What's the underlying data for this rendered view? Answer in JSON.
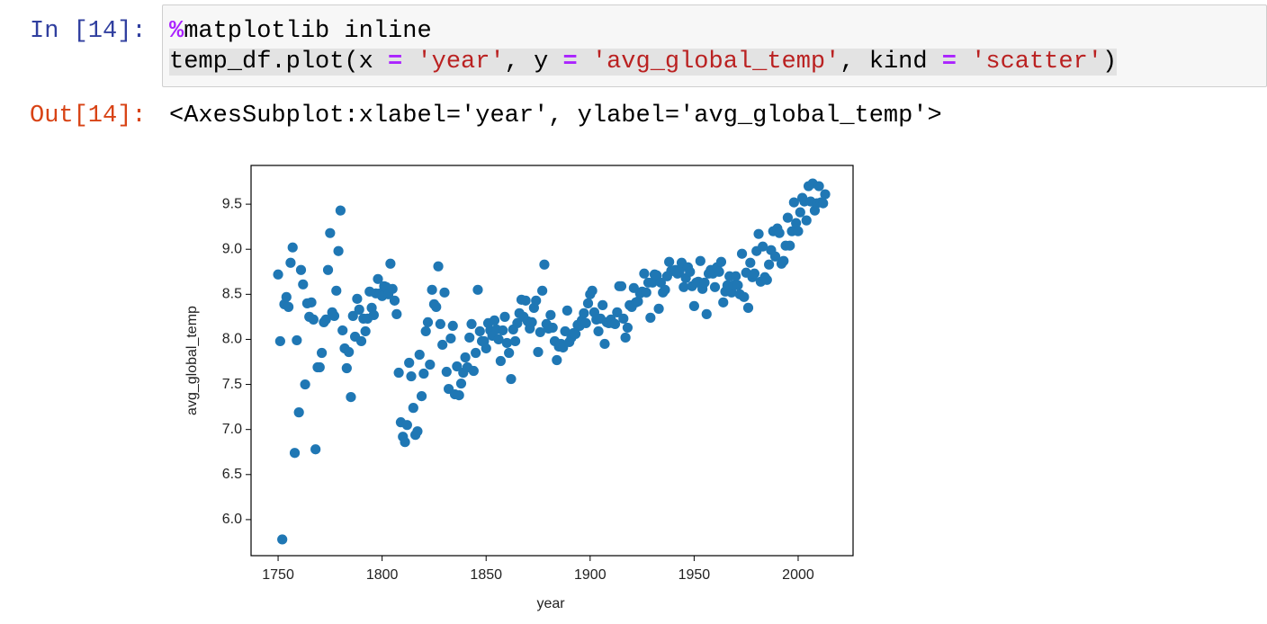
{
  "input": {
    "prompt": "In [14]:",
    "code_lines": [
      [
        "%",
        "matplotlib inline"
      ],
      [
        "temp_df.plot(x ",
        "=",
        " 'year'",
        ", y ",
        "=",
        " 'avg_global_temp'",
        ", kind ",
        "=",
        " 'scatter'",
        ")"
      ]
    ]
  },
  "output": {
    "prompt": "Out[14]:",
    "text": "<AxesSubplot:xlabel='year', ylabel='avg_global_temp'>"
  },
  "chart_data": {
    "type": "scatter",
    "x_label": "year",
    "y_label": "avg_global_temp",
    "color": "#1f77b4",
    "xlim": [
      1737,
      2026.4
    ],
    "ylim": [
      5.6,
      9.93
    ],
    "xticks": [
      1750,
      1800,
      1850,
      1900,
      1950,
      2000
    ],
    "yticks": [
      {
        "value": 6,
        "label": "6.0"
      },
      6.5,
      {
        "value": 7,
        "label": "7.0"
      },
      7.5,
      {
        "value": 8,
        "label": "8.0"
      },
      8.5,
      {
        "value": 9,
        "label": "9.0"
      },
      9.5
    ],
    "x": [
      1750,
      1751,
      1752,
      1753,
      1754,
      1755,
      1756,
      1757,
      1758,
      1759,
      1760,
      1761,
      1762,
      1763,
      1764,
      1765,
      1766,
      1767,
      1768,
      1769,
      1770,
      1771,
      1772,
      1773,
      1774,
      1775,
      1776,
      1777,
      1778,
      1779,
      1780,
      1781,
      1782,
      1783,
      1784,
      1785,
      1786,
      1787,
      1788,
      1789,
      1790,
      1791,
      1792,
      1793,
      1794,
      1795,
      1796,
      1797,
      1798,
      1799,
      1800,
      1801,
      1802,
      1803,
      1804,
      1805,
      1806,
      1807,
      1808,
      1809,
      1810,
      1811,
      1812,
      1813,
      1814,
      1815,
      1816,
      1817,
      1818,
      1819,
      1820,
      1821,
      1822,
      1823,
      1824,
      1825,
      1826,
      1827,
      1828,
      1829,
      1830,
      1831,
      1832,
      1833,
      1834,
      1835,
      1836,
      1837,
      1838,
      1839,
      1840,
      1841,
      1842,
      1843,
      1844,
      1845,
      1846,
      1847,
      1848,
      1849,
      1850,
      1851,
      1852,
      1853,
      1854,
      1855,
      1856,
      1857,
      1858,
      1859,
      1860,
      1861,
      1862,
      1863,
      1864,
      1865,
      1866,
      1867,
      1868,
      1869,
      1870,
      1871,
      1872,
      1873,
      1874,
      1875,
      1876,
      1877,
      1878,
      1879,
      1880,
      1881,
      1882,
      1883,
      1884,
      1885,
      1886,
      1887,
      1888,
      1889,
      1890,
      1891,
      1892,
      1893,
      1894,
      1895,
      1896,
      1897,
      1898,
      1899,
      1900,
      1901,
      1902,
      1903,
      1904,
      1905,
      1906,
      1907,
      1908,
      1909,
      1910,
      1911,
      1912,
      1913,
      1914,
      1915,
      1916,
      1917,
      1918,
      1919,
      1920,
      1921,
      1922,
      1923,
      1924,
      1925,
      1926,
      1927,
      1928,
      1929,
      1930,
      1931,
      1932,
      1933,
      1934,
      1935,
      1936,
      1937,
      1938,
      1939,
      1940,
      1941,
      1942,
      1943,
      1944,
      1945,
      1946,
      1947,
      1948,
      1949,
      1950,
      1951,
      1952,
      1953,
      1954,
      1955,
      1956,
      1957,
      1958,
      1959,
      1960,
      1961,
      1962,
      1963,
      1964,
      1965,
      1966,
      1967,
      1968,
      1969,
      1970,
      1971,
      1972,
      1973,
      1974,
      1975,
      1976,
      1977,
      1978,
      1979,
      1980,
      1981,
      1982,
      1983,
      1984,
      1985,
      1986,
      1987,
      1988,
      1989,
      1990,
      1991,
      1992,
      1993,
      1994,
      1995,
      1996,
      1997,
      1998,
      1999,
      2000,
      2001,
      2002,
      2003,
      2004,
      2005,
      2006,
      2007,
      2008,
      2009,
      2010,
      2011,
      2012,
      2013
    ],
    "values": [
      8.72,
      7.98,
      5.78,
      8.39,
      8.47,
      8.36,
      8.85,
      9.02,
      6.74,
      7.99,
      7.19,
      8.77,
      8.61,
      7.5,
      8.4,
      8.25,
      8.41,
      8.22,
      6.78,
      7.69,
      7.69,
      7.85,
      8.19,
      8.22,
      8.77,
      9.18,
      8.3,
      8.26,
      8.54,
      8.98,
      9.43,
      8.1,
      7.9,
      7.68,
      7.86,
      7.36,
      8.26,
      8.03,
      8.45,
      8.33,
      7.98,
      8.23,
      8.09,
      8.23,
      8.53,
      8.35,
      8.27,
      8.51,
      8.67,
      8.51,
      8.48,
      8.59,
      8.58,
      8.5,
      8.84,
      8.56,
      8.43,
      8.28,
      7.63,
      7.08,
      6.92,
      6.86,
      7.05,
      7.74,
      7.59,
      7.24,
      6.94,
      6.98,
      7.83,
      7.37,
      7.62,
      8.09,
      8.19,
      7.72,
      8.55,
      8.39,
      8.36,
      8.81,
      8.17,
      7.94,
      8.52,
      7.64,
      7.45,
      8.01,
      8.15,
      7.39,
      7.7,
      7.38,
      7.51,
      7.63,
      7.8,
      7.69,
      8.02,
      8.17,
      7.65,
      7.85,
      8.55,
      8.09,
      7.98,
      7.98,
      7.9,
      8.18,
      8.1,
      8.04,
      8.21,
      8.11,
      8.0,
      7.76,
      8.1,
      8.25,
      7.96,
      7.85,
      7.56,
      8.11,
      7.98,
      8.18,
      8.29,
      8.44,
      8.25,
      8.43,
      8.2,
      8.12,
      8.19,
      8.35,
      8.43,
      7.86,
      8.08,
      8.54,
      8.83,
      8.17,
      8.12,
      8.27,
      8.13,
      7.98,
      7.77,
      7.92,
      7.95,
      7.91,
      8.09,
      8.32,
      7.97,
      8.02,
      8.07,
      8.06,
      8.16,
      8.15,
      8.21,
      8.29,
      8.18,
      8.4,
      8.5,
      8.54,
      8.3,
      8.22,
      8.09,
      8.23,
      8.38,
      7.95,
      8.19,
      8.18,
      8.22,
      8.18,
      8.17,
      8.3,
      8.59,
      8.59,
      8.23,
      8.02,
      8.13,
      8.38,
      8.36,
      8.57,
      8.41,
      8.42,
      8.51,
      8.53,
      8.73,
      8.52,
      8.63,
      8.24,
      8.63,
      8.72,
      8.71,
      8.34,
      8.63,
      8.52,
      8.55,
      8.7,
      8.86,
      8.76,
      8.76,
      8.77,
      8.73,
      8.76,
      8.85,
      8.58,
      8.68,
      8.8,
      8.75,
      8.59,
      8.37,
      8.63,
      8.64,
      8.87,
      8.56,
      8.63,
      8.28,
      8.73,
      8.77,
      8.73,
      8.58,
      8.8,
      8.75,
      8.86,
      8.41,
      8.53,
      8.6,
      8.7,
      8.52,
      8.6,
      8.7,
      8.6,
      8.5,
      8.95,
      8.47,
      8.74,
      8.35,
      8.85,
      8.69,
      8.73,
      8.98,
      9.17,
      8.64,
      9.03,
      8.69,
      8.66,
      8.83,
      8.99,
      9.2,
      8.92,
      9.23,
      9.18,
      8.84,
      8.87,
      9.04,
      9.35,
      9.04,
      9.2,
      9.52,
      9.29,
      9.2,
      9.41,
      9.57,
      9.53,
      9.32,
      9.7,
      9.53,
      9.73,
      9.43,
      9.51,
      9.7,
      9.52,
      9.51,
      9.61
    ]
  }
}
